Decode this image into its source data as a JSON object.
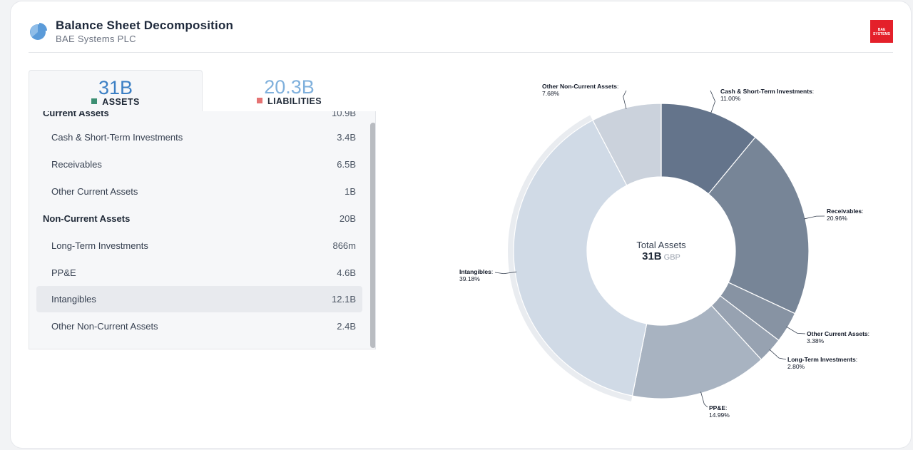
{
  "header": {
    "title": "Balance Sheet Decomposition",
    "subtitle": "BAE Systems PLC",
    "icon": "pie-chart-icon",
    "logo_text": "BAE SYSTEMS",
    "logo_color": "#e4202a"
  },
  "tabs": {
    "assets": {
      "value": "31B",
      "label": "ASSETS",
      "color": "#3c8f73"
    },
    "liabilities": {
      "value": "20.3B",
      "label": "LIABILITIES",
      "color": "#e57373"
    }
  },
  "list": {
    "partial_row": {
      "label": "Current Assets",
      "value": "10.9B"
    },
    "rows": [
      {
        "label": "Cash & Short-Term Investments",
        "value": "3.4B"
      },
      {
        "label": "Receivables",
        "value": "6.5B"
      },
      {
        "label": "Other Current Assets",
        "value": "1B"
      },
      {
        "label": "Non-Current Assets",
        "value": "20B"
      },
      {
        "label": "Long-Term Investments",
        "value": "866m"
      },
      {
        "label": "PP&E",
        "value": "4.6B"
      },
      {
        "label": "Intangibles",
        "value": "12.1B"
      },
      {
        "label": "Other Non-Current Assets",
        "value": "2.4B"
      }
    ],
    "selected": "Intangibles"
  },
  "chart_data": {
    "type": "pie",
    "center_label": "Total Assets",
    "center_value": "31B",
    "center_unit": "GBP",
    "highlighted": "Intangibles",
    "slices": [
      {
        "name": "Cash & Short-Term Investments",
        "value": 11.0,
        "label": "11.00%",
        "color": "#64748b"
      },
      {
        "name": "Receivables",
        "value": 20.96,
        "label": "20.96%",
        "color": "#778597"
      },
      {
        "name": "Other Current Assets",
        "value": 3.38,
        "label": "3.38%",
        "color": "#8793a3"
      },
      {
        "name": "Long-Term Investments",
        "value": 2.8,
        "label": "2.80%",
        "color": "#97a2b1"
      },
      {
        "name": "PP&E",
        "value": 14.99,
        "label": "14.99%",
        "color": "#a8b3c1"
      },
      {
        "name": "Intangibles",
        "value": 39.18,
        "label": "39.18%",
        "color": "#d0dae6"
      },
      {
        "name": "Other Non-Current Assets",
        "value": 7.68,
        "label": "7.68%",
        "color": "#cbd2dc"
      }
    ]
  }
}
